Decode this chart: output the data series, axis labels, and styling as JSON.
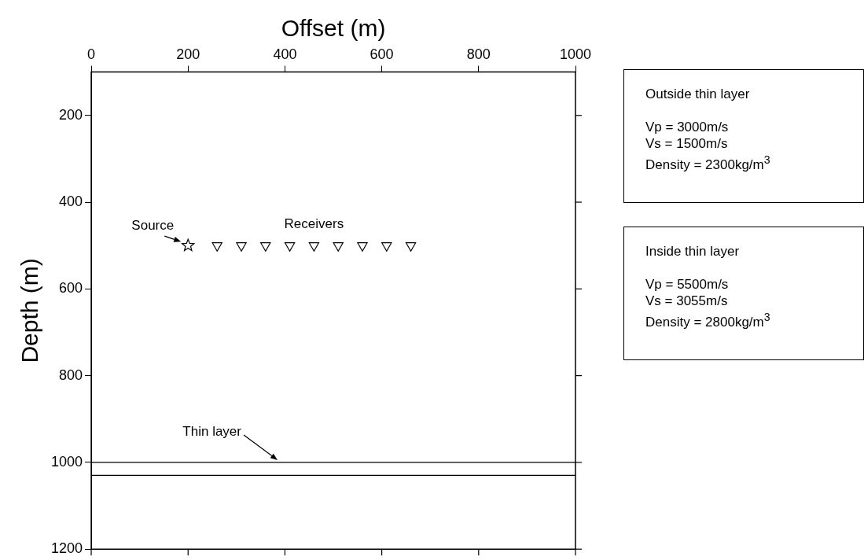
{
  "chart_data": {
    "type": "scatter",
    "xlabel": "Offset (m)",
    "ylabel": "Depth (m)",
    "xlim": [
      0,
      1000
    ],
    "xticks": [
      0,
      200,
      400,
      600,
      800,
      {
        "value": 1000,
        "label": "1000"
      }
    ],
    "ylim": [
      1200,
      100
    ],
    "yticks": [
      200,
      400,
      600,
      800,
      {
        "value": 1000,
        "label": "1000"
      },
      {
        "value": 1200,
        "label": "1200"
      }
    ],
    "grid": false,
    "legend": false,
    "series": [
      {
        "name": "Source",
        "type": "scatter",
        "marker": "star",
        "color": "#000000",
        "x": [
          200
        ],
        "values": [
          500
        ]
      },
      {
        "name": "Receivers",
        "type": "scatter",
        "marker": "triangle",
        "color": "#000000",
        "x": [
          260,
          310,
          360,
          410,
          460,
          510,
          560,
          610,
          660
        ],
        "values": [
          500,
          500,
          500,
          500,
          500,
          500,
          500,
          500,
          500
        ]
      }
    ],
    "ref_lines": [
      {
        "axis": "y",
        "value": 1000,
        "color": "#000000",
        "label": "Thin layer"
      },
      {
        "axis": "y",
        "value": 1030,
        "color": "#000000"
      }
    ],
    "annotations": [
      "Outside thin layer",
      "Vp = 3000m/s",
      "Vs = 1500m/s",
      "Density = 2300kg/m$^{3}$",
      "Inside thin layer",
      "Vp = 5500m/s",
      "Vs = 3055m/s",
      "Density = 2800kg/m$^{3}$"
    ]
  }
}
